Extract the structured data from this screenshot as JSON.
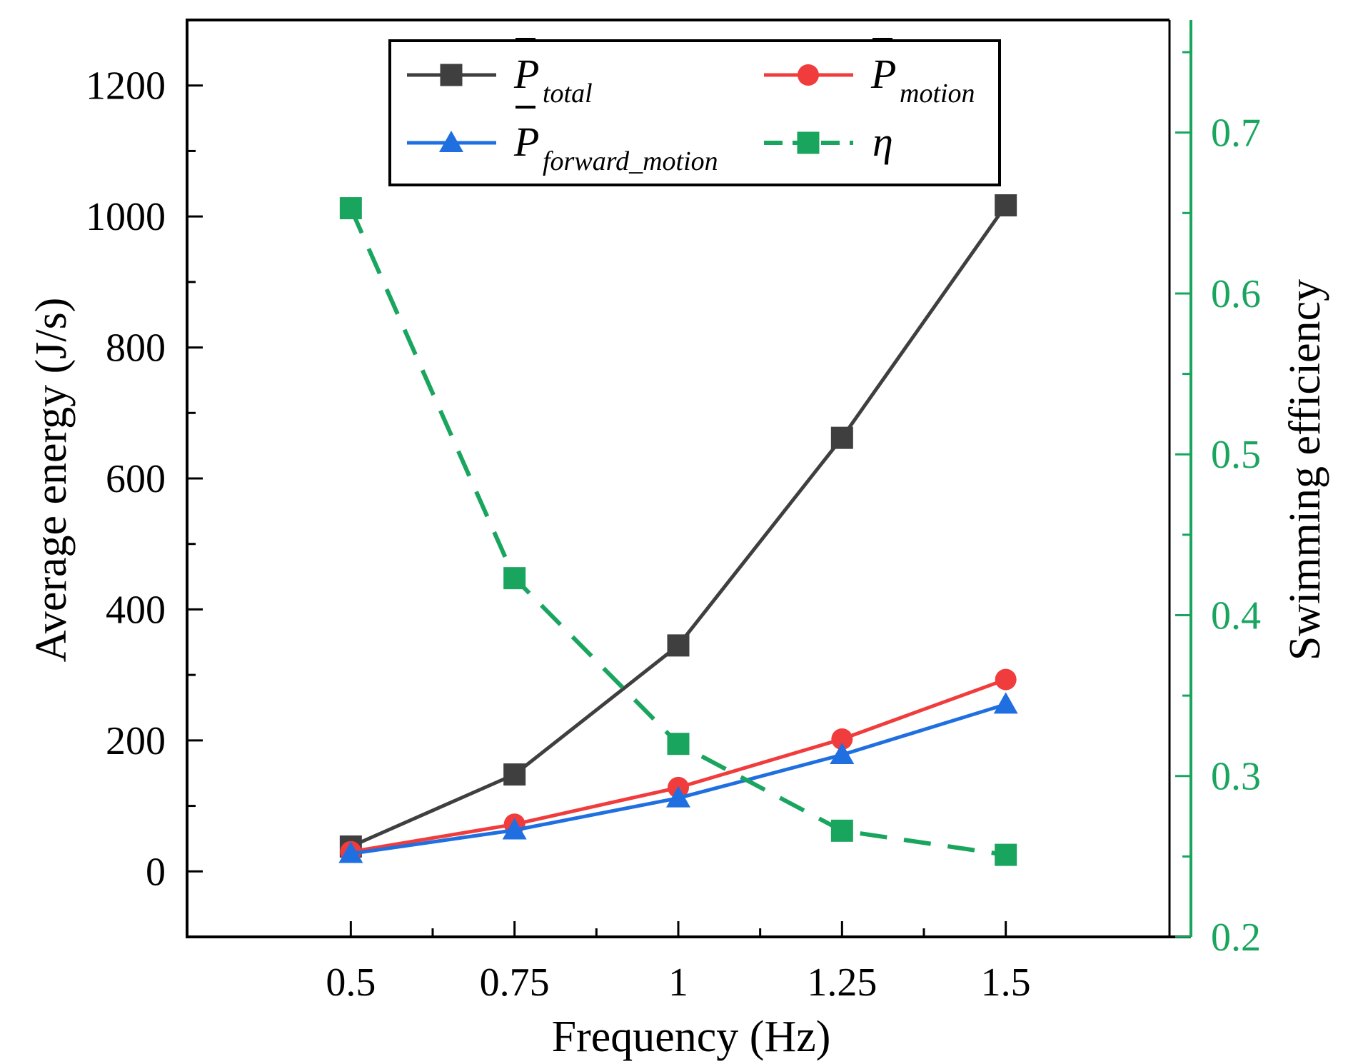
{
  "chart_data": {
    "type": "line",
    "x": [
      0.5,
      0.75,
      1,
      1.25,
      1.5
    ],
    "x_tick_labels": [
      "0.5",
      "0.75",
      "1",
      "1.25",
      "1.5"
    ],
    "xlabel": "Frequency (Hz)",
    "ylabel": "Average energy (J/s)",
    "ylabel_right": "Swimming efficiency",
    "xlim": [
      0.25,
      1.75
    ],
    "ylim": [
      -100,
      1300
    ],
    "ylim_right": [
      0.2,
      0.77
    ],
    "yticks": [
      0,
      200,
      400,
      600,
      800,
      1000,
      1200
    ],
    "yticks_right": [
      0.2,
      0.3,
      0.4,
      0.5,
      0.6,
      0.7
    ],
    "yticks_right_labels": [
      "0.2",
      "0.3",
      "0.4",
      "0.5",
      "0.6",
      "0.7"
    ],
    "legend_position": "top-center",
    "series": [
      {
        "key": "P_total",
        "name": "P̄ total",
        "symbol": "P",
        "subscript": "total",
        "axis": "left",
        "color": "#3f3f3f",
        "marker": "square",
        "line_style": "solid",
        "values": [
          38,
          148,
          345,
          662,
          1017
        ]
      },
      {
        "key": "P_motion",
        "name": "P̄ motion",
        "symbol": "P",
        "subscript": "motion",
        "axis": "left",
        "color": "#f03c3c",
        "marker": "circle",
        "line_style": "solid",
        "values": [
          30,
          72,
          128,
          202,
          293
        ]
      },
      {
        "key": "P_forward_motion",
        "name": "P̄ forward_motion",
        "symbol": "P",
        "subscript": "forward_motion",
        "axis": "left",
        "color": "#1f6fe0",
        "marker": "triangle",
        "line_style": "solid",
        "values": [
          27,
          63,
          112,
          178,
          255
        ]
      },
      {
        "key": "eta",
        "name": "η",
        "symbol": "η",
        "subscript": "",
        "axis": "right",
        "color": "#1aa55f",
        "marker": "square",
        "line_style": "dashed",
        "values": [
          0.653,
          0.423,
          0.32,
          0.266,
          0.251
        ]
      }
    ],
    "legend_order": [
      "P_total",
      "P_motion",
      "P_forward_motion",
      "eta"
    ]
  }
}
